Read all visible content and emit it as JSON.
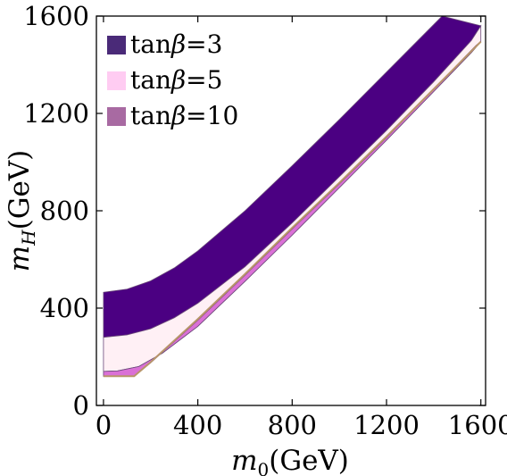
{
  "chart_data": {
    "type": "area",
    "xlabel_main": "m",
    "xlabel_sub": "0",
    "xlabel_unit": "(GeV)",
    "ylabel_main": "m",
    "ylabel_sub": "H",
    "ylabel_unit": "(GeV)",
    "xlim": [
      -30,
      1620
    ],
    "ylim": [
      0,
      1600
    ],
    "xticks": [
      0,
      400,
      800,
      1200,
      1600
    ],
    "yticks": [
      0,
      400,
      800,
      1200,
      1600
    ],
    "grid": false,
    "legend_position": "top-left",
    "series": [
      {
        "name_prefix": "tan",
        "name_symbol": "β",
        "name_value": "=3",
        "color": "#4b0082",
        "legend_color": "#4a2a78",
        "upper": [
          [
            0,
            465
          ],
          [
            100,
            478
          ],
          [
            200,
            512
          ],
          [
            300,
            565
          ],
          [
            400,
            635
          ],
          [
            600,
            800
          ],
          [
            800,
            985
          ],
          [
            1000,
            1175
          ],
          [
            1200,
            1370
          ],
          [
            1400,
            1565
          ],
          [
            1436,
            1600
          ]
        ],
        "lower": [
          [
            0,
            280
          ],
          [
            100,
            290
          ],
          [
            200,
            315
          ],
          [
            300,
            360
          ],
          [
            400,
            420
          ],
          [
            600,
            570
          ],
          [
            800,
            750
          ],
          [
            1000,
            940
          ],
          [
            1200,
            1130
          ],
          [
            1400,
            1330
          ],
          [
            1560,
            1500
          ],
          [
            1600,
            1560
          ]
        ]
      },
      {
        "name_prefix": "tan",
        "name_symbol": "β",
        "name_value": "=5",
        "color": "#fff0f5",
        "legend_color": "#ffccf2",
        "upper": [
          [
            0,
            280
          ],
          [
            100,
            290
          ],
          [
            200,
            315
          ],
          [
            300,
            360
          ],
          [
            400,
            420
          ],
          [
            600,
            570
          ],
          [
            800,
            750
          ],
          [
            1000,
            940
          ],
          [
            1200,
            1130
          ],
          [
            1400,
            1330
          ],
          [
            1560,
            1500
          ],
          [
            1600,
            1560
          ]
        ],
        "lower": [
          [
            0,
            140
          ],
          [
            60,
            142
          ],
          [
            150,
            160
          ],
          [
            250,
            215
          ],
          [
            400,
            325
          ],
          [
            600,
            510
          ],
          [
            800,
            700
          ],
          [
            1000,
            895
          ],
          [
            1200,
            1090
          ],
          [
            1400,
            1290
          ],
          [
            1560,
            1450
          ],
          [
            1600,
            1495
          ]
        ]
      },
      {
        "name_prefix": "tan",
        "name_symbol": "β",
        "name_value": "=10",
        "color": "#da70d6",
        "legend_color": "#a86aa2",
        "upper": [
          [
            0,
            140
          ],
          [
            60,
            142
          ],
          [
            150,
            160
          ],
          [
            250,
            215
          ],
          [
            400,
            325
          ],
          [
            600,
            510
          ],
          [
            800,
            700
          ],
          [
            1000,
            895
          ],
          [
            1200,
            1090
          ],
          [
            1400,
            1290
          ],
          [
            1560,
            1450
          ],
          [
            1600,
            1495
          ]
        ],
        "lower": [
          [
            0,
            120
          ],
          [
            130,
            120
          ],
          [
            200,
            175
          ],
          [
            400,
            350
          ],
          [
            600,
            535
          ],
          [
            800,
            725
          ],
          [
            1000,
            910
          ],
          [
            1200,
            1100
          ],
          [
            1400,
            1300
          ],
          [
            1580,
            1480
          ]
        ]
      }
    ],
    "boundary_line": {
      "color": "#b8956a",
      "points": [
        [
          0,
          120
        ],
        [
          130,
          120
        ],
        [
          200,
          178
        ],
        [
          400,
          355
        ],
        [
          600,
          540
        ],
        [
          800,
          730
        ],
        [
          1000,
          915
        ],
        [
          1200,
          1105
        ],
        [
          1400,
          1300
        ],
        [
          1600,
          1495
        ]
      ]
    }
  }
}
